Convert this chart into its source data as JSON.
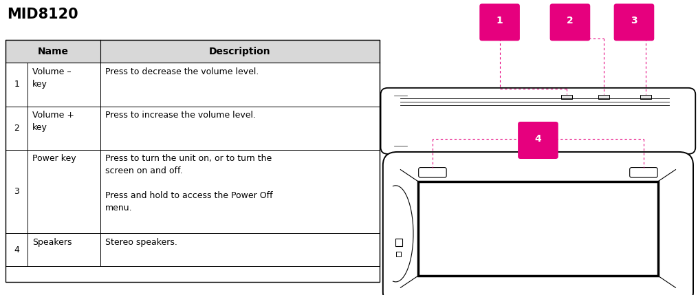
{
  "title": "MID8120",
  "title_fontsize": 15,
  "title_fontweight": "bold",
  "background_color": "#ffffff",
  "accent_color": "#e6007e",
  "table_header_bg": "#d8d8d8",
  "table_border_color": "#000000",
  "rows": [
    {
      "num": "1",
      "name": "Volume –\nkey",
      "desc": "Press to decrease the volume level."
    },
    {
      "num": "2",
      "name": "Volume +\nkey",
      "desc": "Press to increase the volume level."
    },
    {
      "num": "3",
      "name": "Power key",
      "desc": "Press to turn the unit on, or to turn the\nscreen on and off.\n\nPress and hold to access the Power Off\nmenu."
    },
    {
      "num": "4",
      "name": "Speakers",
      "desc": "Stereo speakers."
    }
  ],
  "table_font_size": 9,
  "header_font_size": 10
}
